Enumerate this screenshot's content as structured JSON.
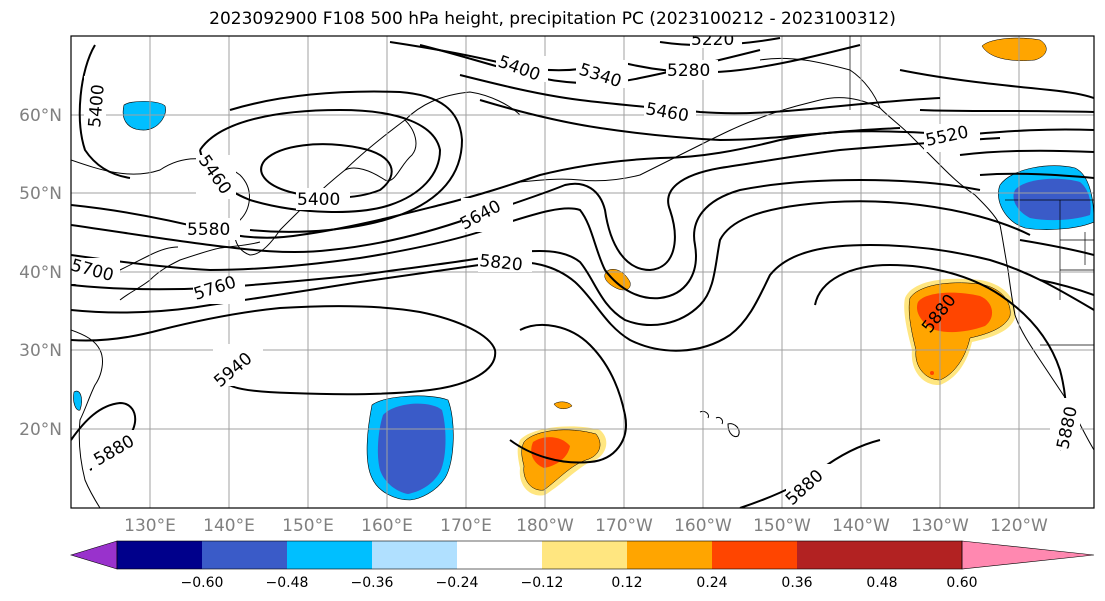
{
  "title": "2023092900 F108 500 hPa height, precipitation PC (2023100212 - 2023100312)",
  "map": {
    "lat_labels": [
      "60°N",
      "50°N",
      "40°N",
      "30°N",
      "20°N"
    ],
    "lon_labels": [
      "130°E",
      "140°E",
      "150°E",
      "160°E",
      "170°E",
      "180°W",
      "170°W",
      "160°W",
      "150°W",
      "140°W",
      "130°W",
      "120°W"
    ],
    "contour_labels": [
      "5400",
      "5460",
      "5400",
      "5580",
      "5700",
      "5760",
      "5940",
      "5880",
      "5640",
      "5820",
      "5400",
      "5340",
      "5280",
      "5220",
      "5460",
      "5520",
      "5880",
      "5880",
      "5880"
    ],
    "colors": {
      "neg_strong": "#3a5bc8",
      "neg_mid": "#00bfff",
      "pos_low": "#ffa500",
      "pos_mid": "#ff4500",
      "pos_light": "#ffe680",
      "grid": "#a0a0a0"
    }
  },
  "colorbar": {
    "colors": [
      "#9932cc",
      "#00008b",
      "#3a5bc8",
      "#00bfff",
      "#b0e0ff",
      "#ffffff",
      "#ffe680",
      "#ffa500",
      "#ff4500",
      "#b22222",
      "#ff88b0"
    ],
    "tick_labels": [
      "−0.60",
      "−0.48",
      "−0.36",
      "−0.24",
      "−0.12",
      "0.12",
      "0.24",
      "0.36",
      "0.48",
      "0.60"
    ]
  }
}
